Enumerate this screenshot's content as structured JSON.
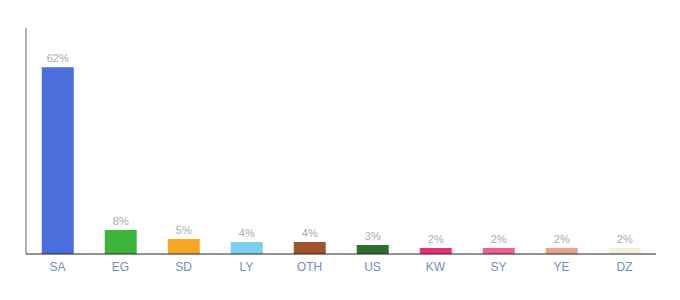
{
  "chart_data": {
    "type": "bar",
    "categories": [
      "SA",
      "EG",
      "SD",
      "LY",
      "OTH",
      "US",
      "KW",
      "SY",
      "YE",
      "DZ"
    ],
    "values": [
      62,
      8,
      5,
      4,
      4,
      3,
      2,
      2,
      2,
      2
    ],
    "value_labels": [
      "62%",
      "8%",
      "5%",
      "4%",
      "4%",
      "3%",
      "2%",
      "2%",
      "2%",
      "2%"
    ],
    "colors": [
      "#4a6fdc",
      "#3cb43c",
      "#f5a623",
      "#7ecfef",
      "#a0522d",
      "#2d6e2d",
      "#e8317a",
      "#f06090",
      "#e8a090",
      "#f5f0dc"
    ],
    "ylim": [
      0,
      75
    ],
    "data_labels": true,
    "tick_labels": "x"
  }
}
